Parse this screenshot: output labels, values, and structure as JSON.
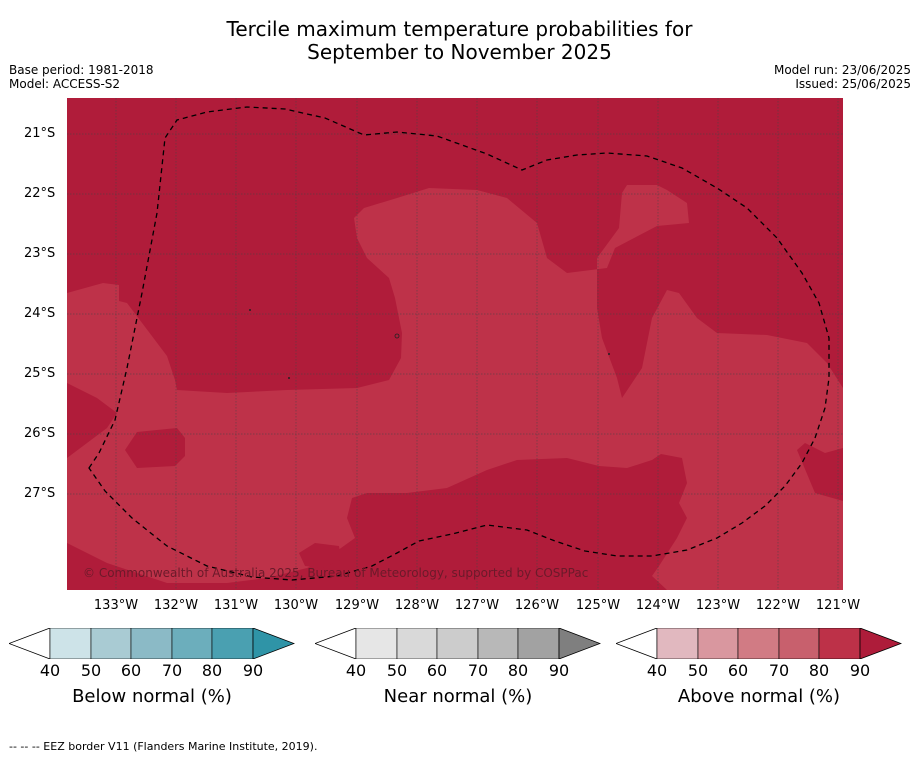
{
  "title_line1": "Tercile maximum temperature probabilities for",
  "title_line2": "September to November 2025",
  "meta": {
    "base_period": "Base period: 1981-2018",
    "model": "Model: ACCESS-S2",
    "model_run": "Model run: 23/06/2025",
    "issued": "Issued: 25/06/2025"
  },
  "map": {
    "lat_labels": [
      "21°S",
      "22°S",
      "23°S",
      "24°S",
      "25°S",
      "26°S",
      "27°S"
    ],
    "lon_labels": [
      "133°W",
      "132°W",
      "131°W",
      "130°W",
      "129°W",
      "128°W",
      "127°W",
      "126°W",
      "125°W",
      "124°W",
      "123°W",
      "122°W",
      "121°W"
    ],
    "copyright": "© Commonwealth of Australia 2025, Bureau of Meteorology, supported by COSPPac",
    "colors": {
      "above_80": "#b01c3a",
      "above_70": "#be3249"
    }
  },
  "colorbars": [
    {
      "label": "Below normal (%)",
      "ticks": [
        "40",
        "50",
        "60",
        "70",
        "80",
        "90"
      ],
      "colors": [
        "#cde3e8",
        "#a9cbd3",
        "#8bbac6",
        "#6caebc",
        "#4aa0b1"
      ],
      "arrow": "#2f94a7"
    },
    {
      "label": "Near normal (%)",
      "ticks": [
        "40",
        "50",
        "60",
        "70",
        "80",
        "90"
      ],
      "colors": [
        "#e6e6e6",
        "#d9d9d9",
        "#cccccc",
        "#b8b8b8",
        "#a2a2a2"
      ],
      "arrow": "#7f7f7f"
    },
    {
      "label": "Above normal (%)",
      "ticks": [
        "40",
        "50",
        "60",
        "70",
        "80",
        "90"
      ],
      "colors": [
        "#e1b8bf",
        "#d9979f",
        "#d17b84",
        "#c8606d",
        "#bd3148"
      ],
      "arrow": "#ae1c3a"
    }
  ],
  "footer": "-- -- -- EEZ border V11 (Flanders Marine Institute, 2019)."
}
